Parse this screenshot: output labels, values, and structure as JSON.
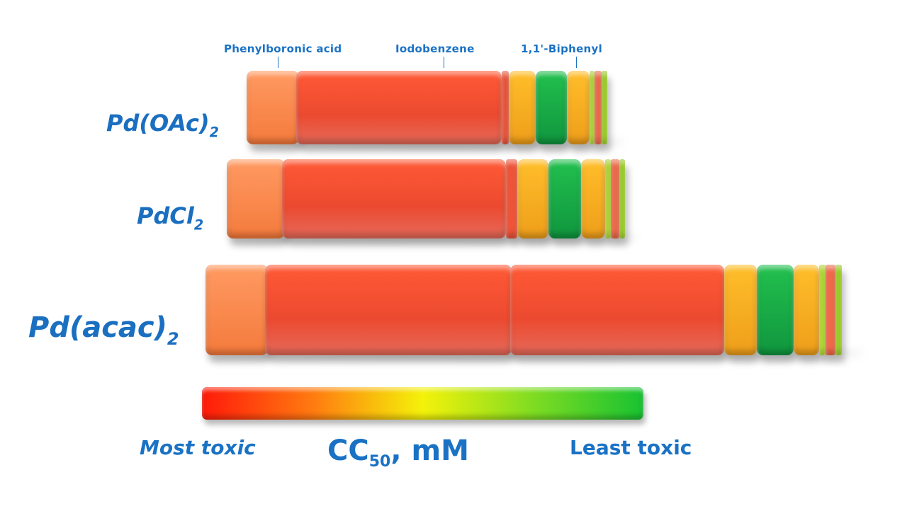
{
  "top_labels": {
    "phenylboronic_acid": "Phenylboronic acid",
    "iodobenzene": "Iodobenzene",
    "biphenyl": "1,1'-Biphenyl"
  },
  "rows": [
    {
      "catalyst_main": "Pd(OAc)",
      "catalyst_sub": "2"
    },
    {
      "catalyst_main": "PdCl",
      "catalyst_sub": "2"
    },
    {
      "catalyst_main": "Pd(acac)",
      "catalyst_sub": "2"
    }
  ],
  "scale": {
    "title_main": "CC",
    "title_sub": "50",
    "title_unit": ", mM",
    "left_label": "Most toxic",
    "right_label": "Least toxic"
  },
  "colors": {
    "light_orange": "#f9874a",
    "red_orange": "#ff4a2c",
    "amber": "#f9b11d",
    "green": "#14a84a",
    "lime": "#a8d824",
    "salmon": "#f56a4a"
  }
}
